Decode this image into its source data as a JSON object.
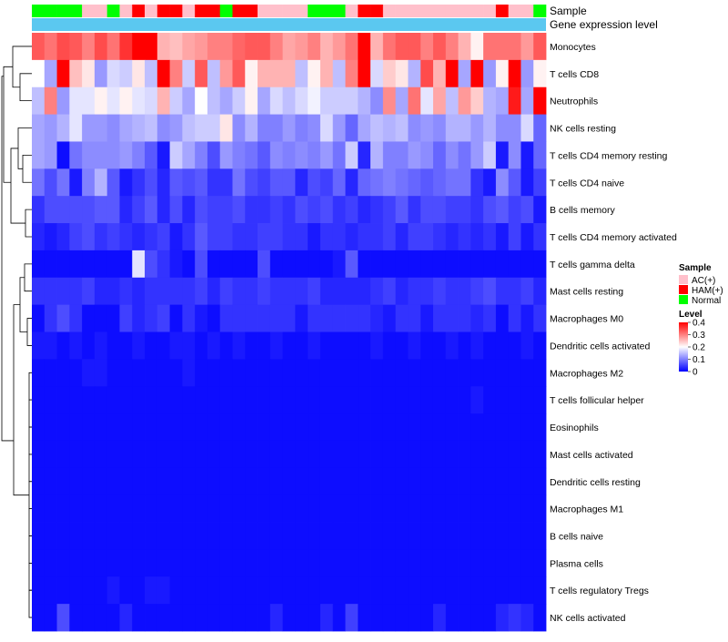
{
  "chart_data": {
    "type": "heatmap",
    "annotation_labels": {
      "sample": "Sample",
      "gene_expression": "Gene expression level"
    },
    "sample_groups": [
      "Normal",
      "Normal",
      "Normal",
      "Normal",
      "AC(+)",
      "AC(+)",
      "Normal",
      "AC(+)",
      "HAM(+)",
      "AC(+)",
      "HAM(+)",
      "HAM(+)",
      "AC(+)",
      "HAM(+)",
      "HAM(+)",
      "Normal",
      "HAM(+)",
      "HAM(+)",
      "AC(+)",
      "AC(+)",
      "AC(+)",
      "AC(+)",
      "Normal",
      "Normal",
      "Normal",
      "AC(+)",
      "HAM(+)",
      "HAM(+)",
      "AC(+)",
      "AC(+)",
      "AC(+)",
      "AC(+)",
      "AC(+)",
      "AC(+)",
      "AC(+)",
      "AC(+)",
      "AC(+)",
      "HAM(+)",
      "AC(+)",
      "AC(+)",
      "Normal"
    ],
    "rows": [
      "Monocytes",
      "T cells CD8",
      "Neutrophils",
      "NK cells resting",
      "T cells CD4 memory resting",
      "T cells CD4 naive",
      "B cells memory",
      "T cells CD4 memory activated",
      "T cells gamma delta",
      "Mast cells resting",
      "Macrophages M0",
      "Dendritic cells activated",
      "Macrophages M2",
      "T cells follicular helper",
      "Eosinophils",
      "Mast cells activated",
      "Dendritic cells resting",
      "Macrophages M1",
      "B cells naive",
      "Plasma cells",
      "T cells regulatory  Tregs",
      "NK cells activated"
    ],
    "columns": 41,
    "values": [
      [
        0.33,
        0.31,
        0.34,
        0.33,
        0.3,
        0.34,
        0.31,
        0.36,
        0.4,
        0.4,
        0.26,
        0.25,
        0.27,
        0.28,
        0.3,
        0.3,
        0.32,
        0.33,
        0.33,
        0.3,
        0.27,
        0.28,
        0.3,
        0.26,
        0.28,
        0.31,
        0.4,
        0.26,
        0.31,
        0.33,
        0.33,
        0.3,
        0.33,
        0.3,
        0.26,
        0.21,
        0.31,
        0.31,
        0.31,
        0.28,
        0.33
      ],
      [
        0.2,
        0.13,
        0.4,
        0.25,
        0.22,
        0.12,
        0.17,
        0.16,
        0.22,
        0.15,
        0.4,
        0.3,
        0.16,
        0.33,
        0.15,
        0.28,
        0.33,
        0.21,
        0.26,
        0.26,
        0.26,
        0.15,
        0.21,
        0.26,
        0.15,
        0.3,
        0.4,
        0.17,
        0.24,
        0.22,
        0.14,
        0.34,
        0.26,
        0.4,
        0.13,
        0.4,
        0.12,
        0.21,
        0.4,
        0.12,
        0.21
      ],
      [
        0.15,
        0.3,
        0.12,
        0.18,
        0.18,
        0.21,
        0.18,
        0.21,
        0.18,
        0.17,
        0.26,
        0.16,
        0.13,
        0.2,
        0.15,
        0.13,
        0.16,
        0.21,
        0.13,
        0.17,
        0.15,
        0.17,
        0.19,
        0.16,
        0.16,
        0.16,
        0.14,
        0.11,
        0.29,
        0.13,
        0.31,
        0.18,
        0.27,
        0.15,
        0.28,
        0.24,
        0.14,
        0.13,
        0.38,
        0.13,
        0.4
      ],
      [
        0.13,
        0.12,
        0.14,
        0.18,
        0.12,
        0.12,
        0.11,
        0.13,
        0.14,
        0.15,
        0.11,
        0.12,
        0.15,
        0.16,
        0.16,
        0.22,
        0.11,
        0.14,
        0.1,
        0.1,
        0.12,
        0.1,
        0.11,
        0.17,
        0.12,
        0.08,
        0.13,
        0.15,
        0.14,
        0.15,
        0.11,
        0.12,
        0.11,
        0.14,
        0.14,
        0.12,
        0.14,
        0.11,
        0.11,
        0.17,
        0.08
      ],
      [
        0.13,
        0.12,
        0.01,
        0.09,
        0.11,
        0.11,
        0.11,
        0.12,
        0.1,
        0.07,
        0.02,
        0.16,
        0.13,
        0.1,
        0.06,
        0.12,
        0.1,
        0.09,
        0.07,
        0.11,
        0.1,
        0.11,
        0.1,
        0.12,
        0.09,
        0.16,
        0.03,
        0.14,
        0.1,
        0.1,
        0.12,
        0.11,
        0.08,
        0.11,
        0.09,
        0.12,
        0.16,
        0.02,
        0.11,
        0.02,
        0.08
      ],
      [
        0.09,
        0.06,
        0.09,
        0.02,
        0.1,
        0.14,
        0.07,
        0.02,
        0.04,
        0.06,
        0.03,
        0.07,
        0.06,
        0.07,
        0.04,
        0.04,
        0.09,
        0.06,
        0.05,
        0.07,
        0.07,
        0.03,
        0.06,
        0.05,
        0.08,
        0.03,
        0.08,
        0.09,
        0.1,
        0.09,
        0.08,
        0.07,
        0.08,
        0.09,
        0.09,
        0.04,
        0.02,
        0.11,
        0.07,
        0.02,
        0.05
      ],
      [
        0.04,
        0.06,
        0.06,
        0.06,
        0.06,
        0.07,
        0.07,
        0.03,
        0.05,
        0.07,
        0.03,
        0.06,
        0.03,
        0.06,
        0.05,
        0.05,
        0.06,
        0.04,
        0.04,
        0.05,
        0.04,
        0.06,
        0.05,
        0.06,
        0.04,
        0.05,
        0.03,
        0.04,
        0.05,
        0.07,
        0.04,
        0.06,
        0.06,
        0.05,
        0.05,
        0.04,
        0.06,
        0.07,
        0.05,
        0.06,
        0.02
      ],
      [
        0.03,
        0.02,
        0.03,
        0.05,
        0.06,
        0.04,
        0.05,
        0.04,
        0.03,
        0.04,
        0.05,
        0.02,
        0.04,
        0.07,
        0.05,
        0.05,
        0.04,
        0.04,
        0.05,
        0.05,
        0.04,
        0.04,
        0.02,
        0.04,
        0.04,
        0.03,
        0.04,
        0.04,
        0.05,
        0.03,
        0.05,
        0.05,
        0.04,
        0.03,
        0.04,
        0.03,
        0.04,
        0.02,
        0.05,
        0.02,
        0.04
      ],
      [
        0.01,
        0.01,
        0.01,
        0.01,
        0.01,
        0.01,
        0.01,
        0.01,
        0.18,
        0.06,
        0.04,
        0.02,
        0.01,
        0.06,
        0.01,
        0.01,
        0.01,
        0.01,
        0.06,
        0.01,
        0.01,
        0.01,
        0.01,
        0.01,
        0.02,
        0.07,
        0.01,
        0.01,
        0.01,
        0.01,
        0.01,
        0.01,
        0.01,
        0.01,
        0.01,
        0.01,
        0.01,
        0.01,
        0.01,
        0.01,
        0.01
      ],
      [
        0.04,
        0.04,
        0.04,
        0.04,
        0.05,
        0.03,
        0.03,
        0.04,
        0.03,
        0.04,
        0.04,
        0.04,
        0.04,
        0.05,
        0.03,
        0.05,
        0.04,
        0.04,
        0.05,
        0.04,
        0.04,
        0.04,
        0.05,
        0.03,
        0.03,
        0.03,
        0.03,
        0.04,
        0.05,
        0.03,
        0.04,
        0.04,
        0.05,
        0.04,
        0.04,
        0.05,
        0.06,
        0.04,
        0.04,
        0.05,
        0.03
      ],
      [
        0.01,
        0.04,
        0.06,
        0.04,
        0.01,
        0.01,
        0.01,
        0.05,
        0.03,
        0.04,
        0.05,
        0.01,
        0.04,
        0.02,
        0.01,
        0.04,
        0.04,
        0.04,
        0.04,
        0.04,
        0.04,
        0.02,
        0.04,
        0.04,
        0.04,
        0.04,
        0.04,
        0.03,
        0.02,
        0.04,
        0.04,
        0.02,
        0.04,
        0.04,
        0.04,
        0.03,
        0.04,
        0.01,
        0.04,
        0.02,
        0.04
      ],
      [
        0.02,
        0.02,
        0.01,
        0.02,
        0.01,
        0.02,
        0.01,
        0.01,
        0.02,
        0.01,
        0.01,
        0.02,
        0.02,
        0.01,
        0.02,
        0.01,
        0.02,
        0.01,
        0.01,
        0.02,
        0.01,
        0.01,
        0.02,
        0.01,
        0.01,
        0.01,
        0.01,
        0.02,
        0.01,
        0.01,
        0.02,
        0.01,
        0.01,
        0.02,
        0.01,
        0.02,
        0.01,
        0.01,
        0.01,
        0.02,
        0.01
      ],
      [
        0.01,
        0.01,
        0.01,
        0.01,
        0.02,
        0.02,
        0.01,
        0.01,
        0.01,
        0.01,
        0.01,
        0.01,
        0.02,
        0.01,
        0.01,
        0.01,
        0.01,
        0.01,
        0.01,
        0.01,
        0.01,
        0.01,
        0.01,
        0.01,
        0.01,
        0.01,
        0.01,
        0.01,
        0.01,
        0.01,
        0.01,
        0.01,
        0.01,
        0.01,
        0.01,
        0.01,
        0.01,
        0.01,
        0.01,
        0.01,
        0.01
      ],
      [
        0.01,
        0.01,
        0.01,
        0.01,
        0.01,
        0.01,
        0.01,
        0.01,
        0.01,
        0.01,
        0.01,
        0.01,
        0.01,
        0.01,
        0.01,
        0.01,
        0.01,
        0.01,
        0.01,
        0.01,
        0.01,
        0.01,
        0.01,
        0.01,
        0.01,
        0.01,
        0.01,
        0.01,
        0.01,
        0.01,
        0.01,
        0.01,
        0.01,
        0.01,
        0.01,
        0.02,
        0.01,
        0.01,
        0.01,
        0.01,
        0.01
      ],
      [
        0.01,
        0.01,
        0.01,
        0.01,
        0.01,
        0.01,
        0.01,
        0.01,
        0.01,
        0.01,
        0.01,
        0.01,
        0.01,
        0.01,
        0.01,
        0.01,
        0.01,
        0.01,
        0.01,
        0.01,
        0.01,
        0.01,
        0.01,
        0.01,
        0.01,
        0.01,
        0.01,
        0.01,
        0.01,
        0.01,
        0.01,
        0.01,
        0.01,
        0.01,
        0.01,
        0.01,
        0.01,
        0.01,
        0.01,
        0.01,
        0.01
      ],
      [
        0.01,
        0.01,
        0.01,
        0.01,
        0.01,
        0.01,
        0.01,
        0.01,
        0.01,
        0.01,
        0.01,
        0.01,
        0.01,
        0.01,
        0.01,
        0.01,
        0.01,
        0.01,
        0.01,
        0.01,
        0.01,
        0.01,
        0.01,
        0.01,
        0.01,
        0.01,
        0.01,
        0.01,
        0.01,
        0.01,
        0.01,
        0.01,
        0.01,
        0.01,
        0.01,
        0.01,
        0.01,
        0.01,
        0.01,
        0.01,
        0.01
      ],
      [
        0.01,
        0.01,
        0.01,
        0.01,
        0.01,
        0.01,
        0.01,
        0.01,
        0.01,
        0.01,
        0.01,
        0.01,
        0.01,
        0.01,
        0.01,
        0.01,
        0.01,
        0.01,
        0.01,
        0.01,
        0.01,
        0.01,
        0.01,
        0.01,
        0.01,
        0.01,
        0.01,
        0.01,
        0.01,
        0.01,
        0.01,
        0.01,
        0.01,
        0.01,
        0.01,
        0.01,
        0.01,
        0.01,
        0.01,
        0.01,
        0.01
      ],
      [
        0.01,
        0.01,
        0.01,
        0.01,
        0.01,
        0.01,
        0.01,
        0.01,
        0.01,
        0.01,
        0.01,
        0.01,
        0.01,
        0.01,
        0.01,
        0.01,
        0.01,
        0.01,
        0.01,
        0.01,
        0.01,
        0.01,
        0.01,
        0.01,
        0.01,
        0.01,
        0.01,
        0.01,
        0.01,
        0.01,
        0.01,
        0.01,
        0.01,
        0.01,
        0.01,
        0.01,
        0.01,
        0.01,
        0.01,
        0.01,
        0.01
      ],
      [
        0.01,
        0.01,
        0.01,
        0.01,
        0.01,
        0.01,
        0.01,
        0.01,
        0.01,
        0.01,
        0.01,
        0.01,
        0.01,
        0.01,
        0.01,
        0.01,
        0.01,
        0.01,
        0.01,
        0.01,
        0.01,
        0.01,
        0.01,
        0.01,
        0.01,
        0.01,
        0.01,
        0.01,
        0.01,
        0.01,
        0.01,
        0.01,
        0.01,
        0.01,
        0.01,
        0.01,
        0.01,
        0.01,
        0.01,
        0.01,
        0.01
      ],
      [
        0.01,
        0.01,
        0.01,
        0.01,
        0.01,
        0.01,
        0.01,
        0.01,
        0.01,
        0.01,
        0.01,
        0.01,
        0.01,
        0.01,
        0.01,
        0.01,
        0.01,
        0.01,
        0.01,
        0.01,
        0.01,
        0.01,
        0.01,
        0.01,
        0.01,
        0.01,
        0.01,
        0.01,
        0.01,
        0.01,
        0.01,
        0.01,
        0.01,
        0.01,
        0.01,
        0.01,
        0.01,
        0.01,
        0.01,
        0.01,
        0.01
      ],
      [
        0.01,
        0.01,
        0.01,
        0.01,
        0.01,
        0.01,
        0.02,
        0.01,
        0.01,
        0.02,
        0.02,
        0.01,
        0.01,
        0.01,
        0.01,
        0.01,
        0.01,
        0.01,
        0.01,
        0.01,
        0.01,
        0.01,
        0.01,
        0.01,
        0.01,
        0.01,
        0.01,
        0.01,
        0.01,
        0.01,
        0.01,
        0.01,
        0.01,
        0.01,
        0.01,
        0.01,
        0.01,
        0.01,
        0.01,
        0.01,
        0.01
      ],
      [
        0.01,
        0.01,
        0.06,
        0.01,
        0.01,
        0.01,
        0.01,
        0.03,
        0.01,
        0.01,
        0.01,
        0.01,
        0.01,
        0.01,
        0.01,
        0.01,
        0.01,
        0.01,
        0.01,
        0.03,
        0.01,
        0.01,
        0.01,
        0.03,
        0.01,
        0.05,
        0.01,
        0.01,
        0.01,
        0.01,
        0.01,
        0.01,
        0.03,
        0.01,
        0.01,
        0.01,
        0.01,
        0.03,
        0.04,
        0.03,
        0.01
      ]
    ],
    "legend": {
      "sample_title": "Sample",
      "sample_entries": [
        {
          "label": "AC(+)",
          "color": "#FFC0CB"
        },
        {
          "label": "HAM(+)",
          "color": "#FF0000"
        },
        {
          "label": "Normal",
          "color": "#00FF00"
        }
      ],
      "level_title": "Level",
      "level_ticks": [
        "0.4",
        "0.3",
        "0.2",
        "0.1",
        "0"
      ],
      "level_range": [
        0,
        0.4
      ],
      "colors": {
        "low": "#0000FF",
        "mid": "#FFFFFF",
        "high": "#FF0000"
      }
    },
    "gene_expression_color": "#5BC8F0",
    "dendrogram": "row clustering"
  }
}
